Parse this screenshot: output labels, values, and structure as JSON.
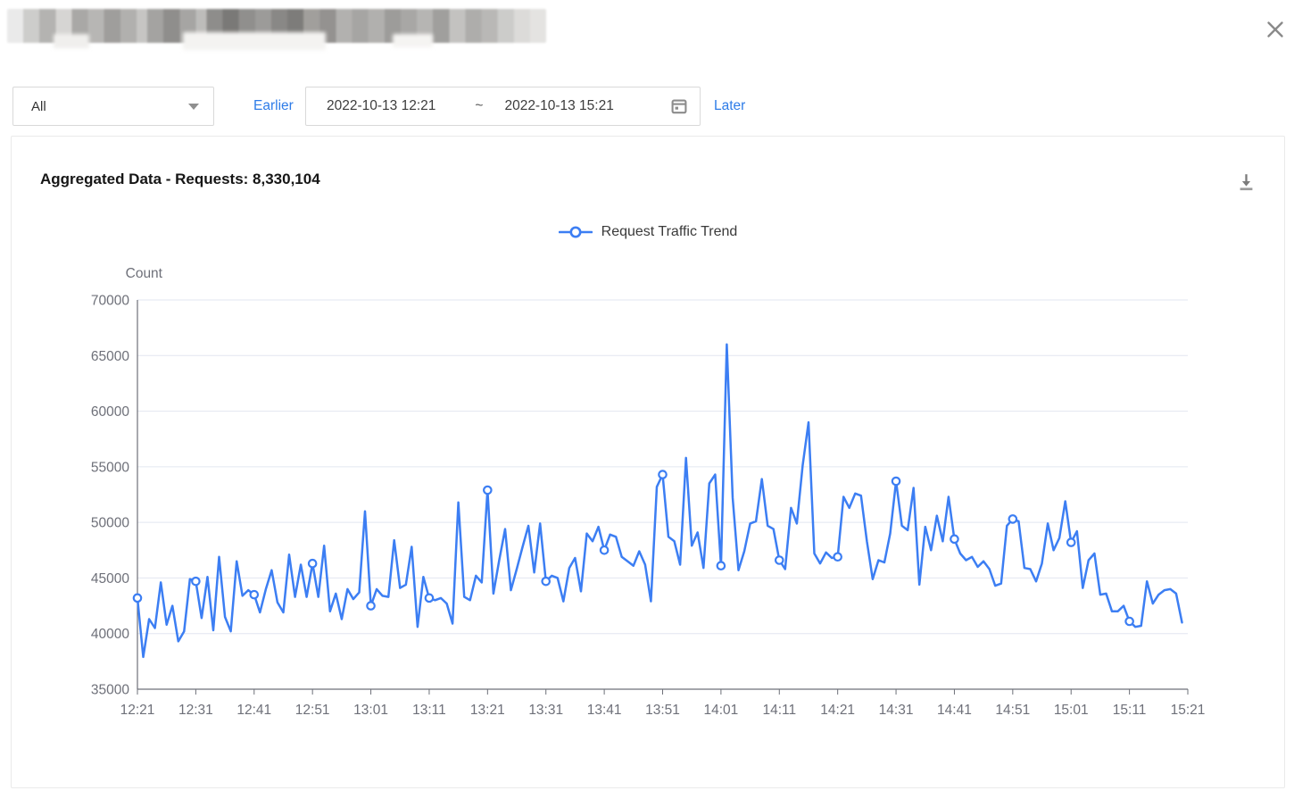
{
  "window": {
    "title_state": "redacted-blurred"
  },
  "icons": {
    "close": "x-mark",
    "scope_dropdown": "chevron-down",
    "date_picker": "calendar",
    "export": "download-arrow-to-line",
    "legend_marker": "line-with-hollow-circle"
  },
  "filters": {
    "scope": {
      "value": "All"
    },
    "earlier": "Earlier",
    "later": "Later",
    "range": {
      "start": "2022-10-13 12:21",
      "separator": "~",
      "end": "2022-10-13 15:21"
    }
  },
  "card": {
    "title": "Aggregated Data - Requests: 8,330,104"
  },
  "chart_data": {
    "type": "line",
    "title": "Request Traffic Trend",
    "ylabel": "Count",
    "xlabel": "",
    "legend_position": "top-center",
    "grid": true,
    "ylim": [
      35000,
      70000
    ],
    "yticks": [
      35000,
      40000,
      45000,
      50000,
      55000,
      60000,
      65000,
      70000
    ],
    "x_start": "12:21",
    "x_end": "15:20",
    "x_interval_minutes": 1,
    "x_slots": 180,
    "x_tick_every": 10,
    "x_tick_labels": [
      "12:21",
      "12:31",
      "12:41",
      "12:51",
      "13:01",
      "13:11",
      "13:21",
      "13:31",
      "13:41",
      "13:51",
      "14:01",
      "14:11",
      "14:21",
      "14:31",
      "14:41",
      "14:51",
      "15:01",
      "15:11",
      "15:21"
    ],
    "marker_every": 10,
    "colors": {
      "line": "#3c7ef3",
      "marker_fill": "#ffffff",
      "grid": "#e2e6f0",
      "axis": "#6e7079",
      "label": "#6e7079",
      "link_blue": "#2e7ce8"
    },
    "series": [
      {
        "name": "Request Traffic Trend",
        "values": [
          43200,
          37900,
          41300,
          40500,
          44600,
          40800,
          42500,
          39300,
          40200,
          44900,
          44700,
          41400,
          45100,
          40300,
          46900,
          41500,
          40200,
          46500,
          43400,
          43900,
          43500,
          41900,
          44000,
          45700,
          42800,
          41900,
          47100,
          43300,
          46200,
          43300,
          46300,
          43300,
          47900,
          42000,
          43600,
          41300,
          44000,
          43100,
          43700,
          51000,
          42500,
          44000,
          43400,
          43300,
          48400,
          44100,
          44400,
          47800,
          40600,
          45100,
          43200,
          43000,
          43200,
          42700,
          40900,
          51800,
          43300,
          43000,
          45200,
          44600,
          52900,
          43600,
          46600,
          49400,
          43900,
          45800,
          47800,
          49700,
          45500,
          49900,
          44700,
          45200,
          45000,
          42900,
          45900,
          46800,
          43800,
          49000,
          48300,
          49600,
          47500,
          48900,
          48700,
          46900,
          46500,
          46100,
          47400,
          46200,
          42900,
          53200,
          54300,
          48700,
          48300,
          46200,
          55800,
          47900,
          49100,
          45900,
          53500,
          54300,
          46100,
          66000,
          52200,
          45700,
          47400,
          49900,
          50100,
          53900,
          49700,
          49400,
          46600,
          45800,
          51300,
          49900,
          55100,
          59000,
          47200,
          46300,
          47300,
          46800,
          46900,
          52300,
          51300,
          52600,
          52400,
          48300,
          44900,
          46600,
          46400,
          49000,
          53700,
          49700,
          49300,
          53100,
          44400,
          49600,
          47500,
          50600,
          48300,
          52300,
          48500,
          47200,
          46600,
          46900,
          46000,
          46500,
          45800,
          44300,
          44500,
          49700,
          50300,
          50100,
          45900,
          45800,
          44700,
          46300,
          49900,
          47500,
          48600,
          51900,
          48200,
          49200,
          44100,
          46600,
          47200,
          43500,
          43600,
          42000,
          42000,
          42500,
          41100,
          40600,
          40700,
          44700,
          42700,
          43500,
          43900,
          44000,
          43600,
          41000
        ]
      }
    ]
  }
}
